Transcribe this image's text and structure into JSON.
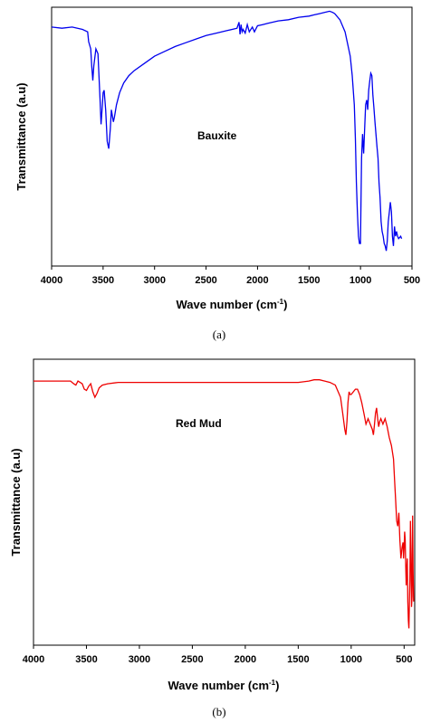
{
  "chart_data": [
    {
      "type": "line",
      "caption": "(a)",
      "annotation": "Bauxite",
      "xlabel_main": "Wave number (cm",
      "xlabel_sup": "-1",
      "xlabel_end": ")",
      "ylabel": "Transmittance (a.u)",
      "xlim": [
        4000,
        500
      ],
      "x_ticks": [
        4000,
        3500,
        3000,
        2500,
        2000,
        1500,
        1000,
        500
      ],
      "y_ticks": [],
      "ylim": [
        0,
        100
      ],
      "color": "#0000ee",
      "series": [
        {
          "x": [
            4000,
            3900,
            3800,
            3700,
            3650,
            3640,
            3620,
            3610,
            3600,
            3590,
            3570,
            3550,
            3530,
            3520,
            3510,
            3500,
            3490,
            3475,
            3460,
            3445,
            3430,
            3420,
            3400,
            3390,
            3370,
            3340,
            3300,
            3250,
            3200,
            3100,
            3000,
            2900,
            2800,
            2700,
            2600,
            2500,
            2400,
            2300,
            2200,
            2180,
            2170,
            2160,
            2150,
            2140,
            2120,
            2100,
            2080,
            2050,
            2030,
            2000,
            1950,
            1900,
            1800,
            1700,
            1600,
            1500,
            1450,
            1400,
            1350,
            1300,
            1270,
            1250,
            1200,
            1150,
            1100,
            1080,
            1060,
            1050,
            1040,
            1030,
            1020,
            1010,
            1000,
            990,
            980,
            970,
            960,
            950,
            940,
            930,
            920,
            910,
            900,
            890,
            880,
            870,
            860,
            850,
            840,
            830,
            820,
            810,
            800,
            790,
            780,
            770,
            760,
            750,
            740,
            730,
            720,
            710,
            700,
            690,
            680,
            670,
            660,
            650,
            640,
            630,
            620,
            610,
            600
          ],
          "y": [
            94,
            93.5,
            94,
            93,
            92,
            88,
            85,
            78,
            72,
            78,
            85,
            83,
            65,
            54,
            60,
            67,
            68,
            60,
            47,
            44,
            52,
            60,
            55,
            57,
            62,
            67,
            71,
            74,
            76,
            79,
            82,
            84,
            86,
            87.5,
            89,
            90.5,
            91.5,
            92.5,
            93.5,
            96,
            91,
            95,
            92,
            93,
            91.5,
            95,
            92,
            94,
            92,
            94.5,
            95,
            95.5,
            96.5,
            97,
            98,
            98.5,
            99,
            99.5,
            100,
            100.5,
            100,
            99.5,
            97,
            92,
            82,
            74,
            62,
            48,
            30,
            18,
            8,
            5,
            5,
            40,
            50,
            42,
            52,
            62,
            64,
            60,
            68,
            72,
            75,
            74,
            66,
            61,
            55,
            50,
            45,
            40,
            30,
            24,
            14,
            10,
            8,
            5,
            4,
            2,
            6,
            14,
            18,
            22,
            18,
            8,
            4,
            12,
            8,
            10,
            8,
            7,
            7.5,
            8,
            7
          ]
        }
      ]
    },
    {
      "type": "line",
      "caption": "(b)",
      "annotation": "Red Mud",
      "xlabel_main": "Wave number (cm",
      "xlabel_sup": "-1",
      "xlabel_end": ")",
      "ylabel": "Transmittance (a.u)",
      "xlim": [
        4000,
        400
      ],
      "x_ticks": [
        4000,
        3500,
        3000,
        2500,
        2000,
        1500,
        1000,
        500
      ],
      "y_ticks": [],
      "ylim": [
        0,
        100
      ],
      "color": "#ee0000",
      "series": [
        {
          "x": [
            4000,
            3800,
            3700,
            3650,
            3620,
            3600,
            3580,
            3540,
            3520,
            3500,
            3480,
            3460,
            3440,
            3420,
            3400,
            3380,
            3350,
            3300,
            3200,
            3000,
            2800,
            2600,
            2400,
            2200,
            2000,
            1800,
            1600,
            1500,
            1400,
            1350,
            1300,
            1250,
            1200,
            1150,
            1100,
            1080,
            1060,
            1050,
            1040,
            1030,
            1020,
            1010,
            1000,
            980,
            960,
            940,
            920,
            900,
            880,
            860,
            850,
            840,
            820,
            800,
            790,
            780,
            770,
            760,
            750,
            740,
            730,
            720,
            700,
            680,
            660,
            640,
            620,
            600,
            590,
            580,
            570,
            560,
            550,
            540,
            530,
            525,
            520,
            510,
            505,
            500,
            495,
            490,
            485,
            480,
            475,
            470,
            465,
            460,
            455,
            450,
            445,
            440,
            435,
            430,
            425,
            420,
            415,
            410
          ],
          "y": [
            94,
            94,
            94,
            94,
            93,
            92.5,
            94,
            93,
            91,
            90.5,
            92,
            93,
            90,
            88,
            89.5,
            91.5,
            92.5,
            93,
            93.5,
            93.5,
            93.5,
            93.5,
            93.5,
            93.5,
            93.5,
            93.5,
            93.5,
            93.5,
            94,
            94.5,
            94.5,
            94,
            93.5,
            92.5,
            88,
            82,
            76,
            74,
            79,
            86,
            90,
            89,
            89,
            90,
            91,
            91,
            89,
            86,
            82,
            78,
            79,
            80,
            78,
            76,
            74,
            78,
            82,
            84,
            80,
            77,
            79,
            80,
            78,
            80,
            77,
            73,
            70,
            65,
            57,
            50,
            42,
            40,
            45,
            35,
            28,
            30,
            32,
            34,
            28,
            32,
            38,
            35,
            25,
            18,
            24,
            28,
            12,
            5,
            2,
            12,
            20,
            42,
            30,
            10,
            14,
            44,
            24,
            12
          ]
        }
      ]
    }
  ]
}
